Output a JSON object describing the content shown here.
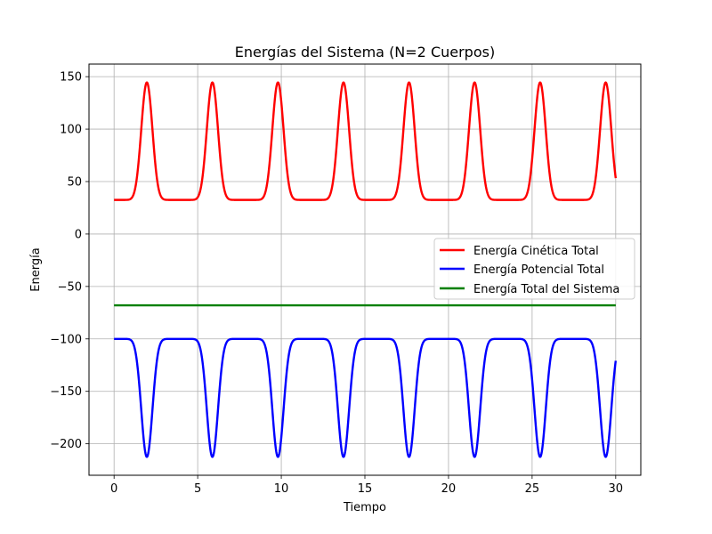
{
  "chart_data": {
    "type": "line",
    "title": "Energías del Sistema (N=2 Cuerpos)",
    "xlabel": "Tiempo",
    "ylabel": "Energía",
    "xlim": [
      -1.5,
      31.5
    ],
    "ylim": [
      -230,
      162
    ],
    "xticks": [
      0,
      5,
      10,
      15,
      20,
      25,
      30
    ],
    "yticks": [
      -200,
      -150,
      -100,
      -50,
      0,
      50,
      100,
      150
    ],
    "xtick_labels": [
      "0",
      "5",
      "10",
      "15",
      "20",
      "25",
      "30"
    ],
    "ytick_labels": [
      "−200",
      "−150",
      "−100",
      "−50",
      "0",
      "50",
      "100",
      "150"
    ],
    "grid": true,
    "legend_position": "center-right",
    "period": 3.92,
    "peak_time": 1.96,
    "series": [
      {
        "name": "Energía Cinética Total",
        "color": "#ff0000",
        "min": 32.5,
        "max": 144.5,
        "shape": "kinetic"
      },
      {
        "name": "Energía Potencial Total",
        "color": "#0000ff",
        "min": -212.5,
        "max": -100,
        "shape": "potential"
      },
      {
        "name": "Energía Total del Sistema",
        "color": "#008000",
        "value": -68,
        "shape": "constant"
      }
    ],
    "x_range": [
      0,
      30
    ]
  }
}
